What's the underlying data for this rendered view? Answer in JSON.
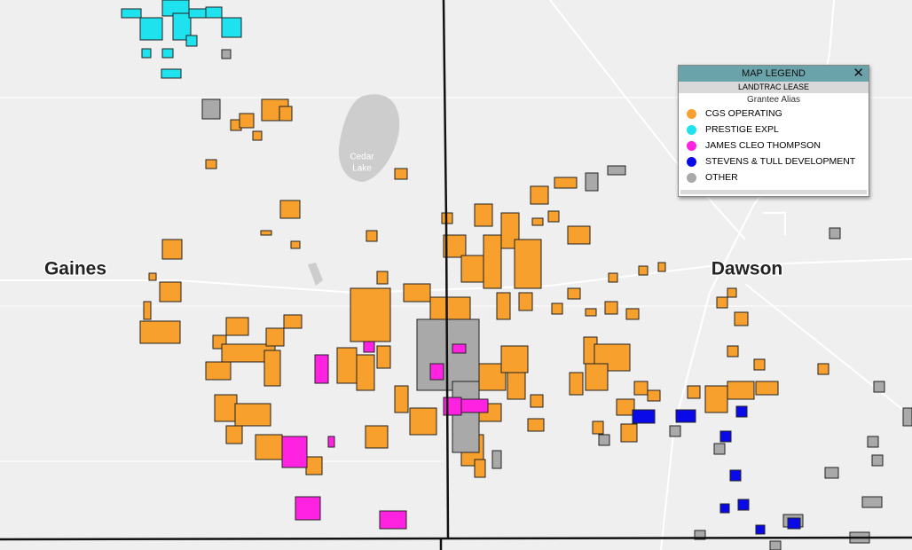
{
  "map": {
    "labels": {
      "counties": [
        "Gaines",
        "Dawson"
      ],
      "lake": [
        "Cedar",
        "Lake"
      ]
    },
    "legend": {
      "title": "MAP LEGEND",
      "subtitle": "LANDTRAC LEASE",
      "field": "Grantee Alias",
      "items": [
        {
          "name": "CGS OPERATING",
          "color": "#f7a02e"
        },
        {
          "name": "PRESTIGE EXPL",
          "color": "#1ee3ee"
        },
        {
          "name": "JAMES CLEO THOMPSON",
          "color": "#ff22e0"
        },
        {
          "name": "STEVENS & TULL DEVELOPMENT",
          "color": "#0a0ae8"
        },
        {
          "name": "OTHER",
          "color": "#a9a9a9"
        }
      ]
    }
  }
}
